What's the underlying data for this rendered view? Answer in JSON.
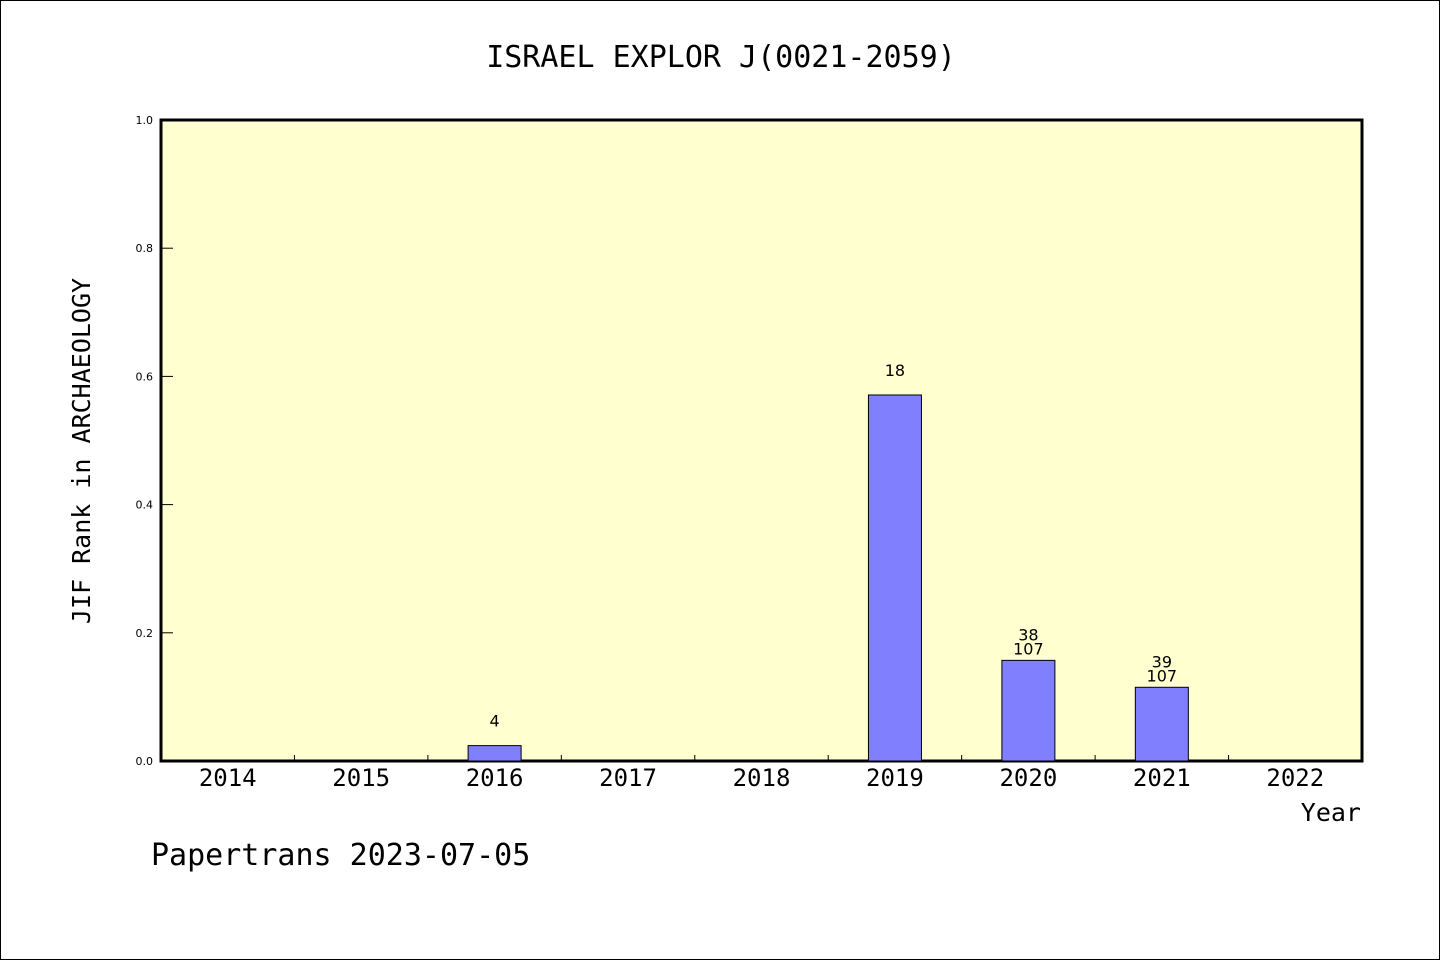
{
  "chart_data": {
    "type": "bar",
    "title": "ISRAEL EXPLOR J(0021-2059)",
    "xlabel": "Year",
    "ylabel": "JIF Rank in ARCHAEOLOGY",
    "categories": [
      "2014",
      "2015",
      "2016",
      "2017",
      "2018",
      "2019",
      "2020",
      "2021",
      "2022"
    ],
    "values": [
      null,
      null,
      0.024,
      null,
      null,
      0.571,
      0.157,
      0.115,
      null
    ],
    "data_labels": [
      [],
      [],
      [
        "4"
      ],
      [],
      [],
      [
        "18"
      ],
      [
        "38",
        "107"
      ],
      [
        "39",
        "107"
      ],
      []
    ],
    "ylim": [
      0,
      1.0
    ],
    "yticks": [
      "0.0",
      "0.2",
      "0.4",
      "0.6",
      "0.8",
      "1.0"
    ],
    "ytick_values": [
      0.0,
      0.2,
      0.4,
      0.6,
      0.8,
      1.0
    ],
    "grid": false,
    "colors": {
      "plot_background": "#ffffd0",
      "bar_fill": "#8080ff",
      "bar_stroke": "#000000"
    }
  },
  "footer": "Papertrans 2023-07-05"
}
